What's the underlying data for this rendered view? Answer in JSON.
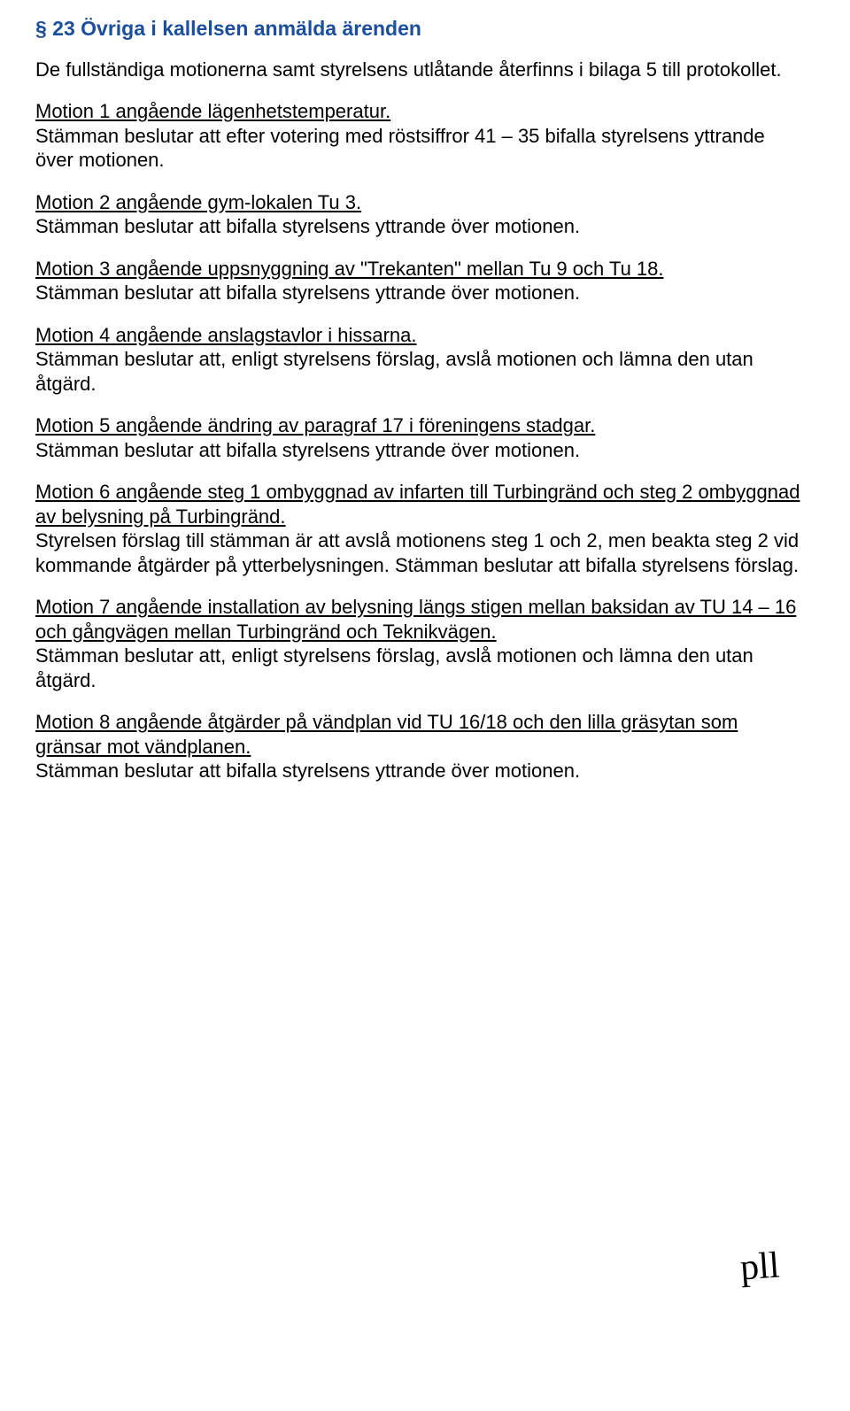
{
  "heading": "§ 23 Övriga i kallelsen anmälda ärenden",
  "intro": "De fullständiga motionerna samt styrelsens utlåtande återfinns i bilaga 5 till protokollet.",
  "motions": [
    {
      "title": "Motion 1 angående lägenhetstemperatur.",
      "body": "Stämman beslutar att efter votering med röstsiffror 41 – 35 bifalla styrelsens yttrande över motionen."
    },
    {
      "title": "Motion 2 angående gym-lokalen Tu 3.",
      "body": "Stämman beslutar att bifalla styrelsens yttrande över motionen."
    },
    {
      "title": "Motion 3 angående uppsnyggning av \"Trekanten\" mellan Tu 9 och Tu 18.",
      "body": "Stämman beslutar att bifalla styrelsens yttrande över motionen."
    },
    {
      "title": "Motion 4 angående anslagstavlor i hissarna.",
      "body": "Stämman beslutar att, enligt styrelsens förslag, avslå motionen och lämna den utan åtgärd."
    },
    {
      "title": "Motion 5 angående  ändring av paragraf 17 i föreningens stadgar.",
      "body": "Stämman beslutar att bifalla styrelsens yttrande över motionen."
    },
    {
      "title": "Motion 6 angående steg 1 ombyggnad av infarten till Turbingränd och steg 2 ombyggnad av belysning på Turbingränd.",
      "body": "Styrelsen förslag till stämman är att avslå motionens steg 1 och 2, men beakta steg 2 vid kommande åtgärder på ytterbelysningen. Stämman beslutar att bifalla styrelsens förslag."
    },
    {
      "title": "Motion 7 angående installation av belysning längs stigen mellan baksidan av TU 14 – 16 och gångvägen mellan Turbingränd och Teknikvägen.",
      "body": "Stämman beslutar att, enligt styrelsens förslag, avslå motionen och lämna den utan åtgärd."
    },
    {
      "title": "Motion 8 angående åtgärder på vändplan vid TU 16/18 och den lilla gräsytan som gränsar mot vändplanen.",
      "body": "Stämman beslutar att bifalla styrelsens yttrande över motionen."
    }
  ],
  "signature": "pll",
  "colors": {
    "heading": "#1a4fa0",
    "text": "#000000",
    "background": "#ffffff"
  },
  "typography": {
    "body_fontsize": 22,
    "heading_fontsize": 23,
    "font_family": "Arial"
  }
}
